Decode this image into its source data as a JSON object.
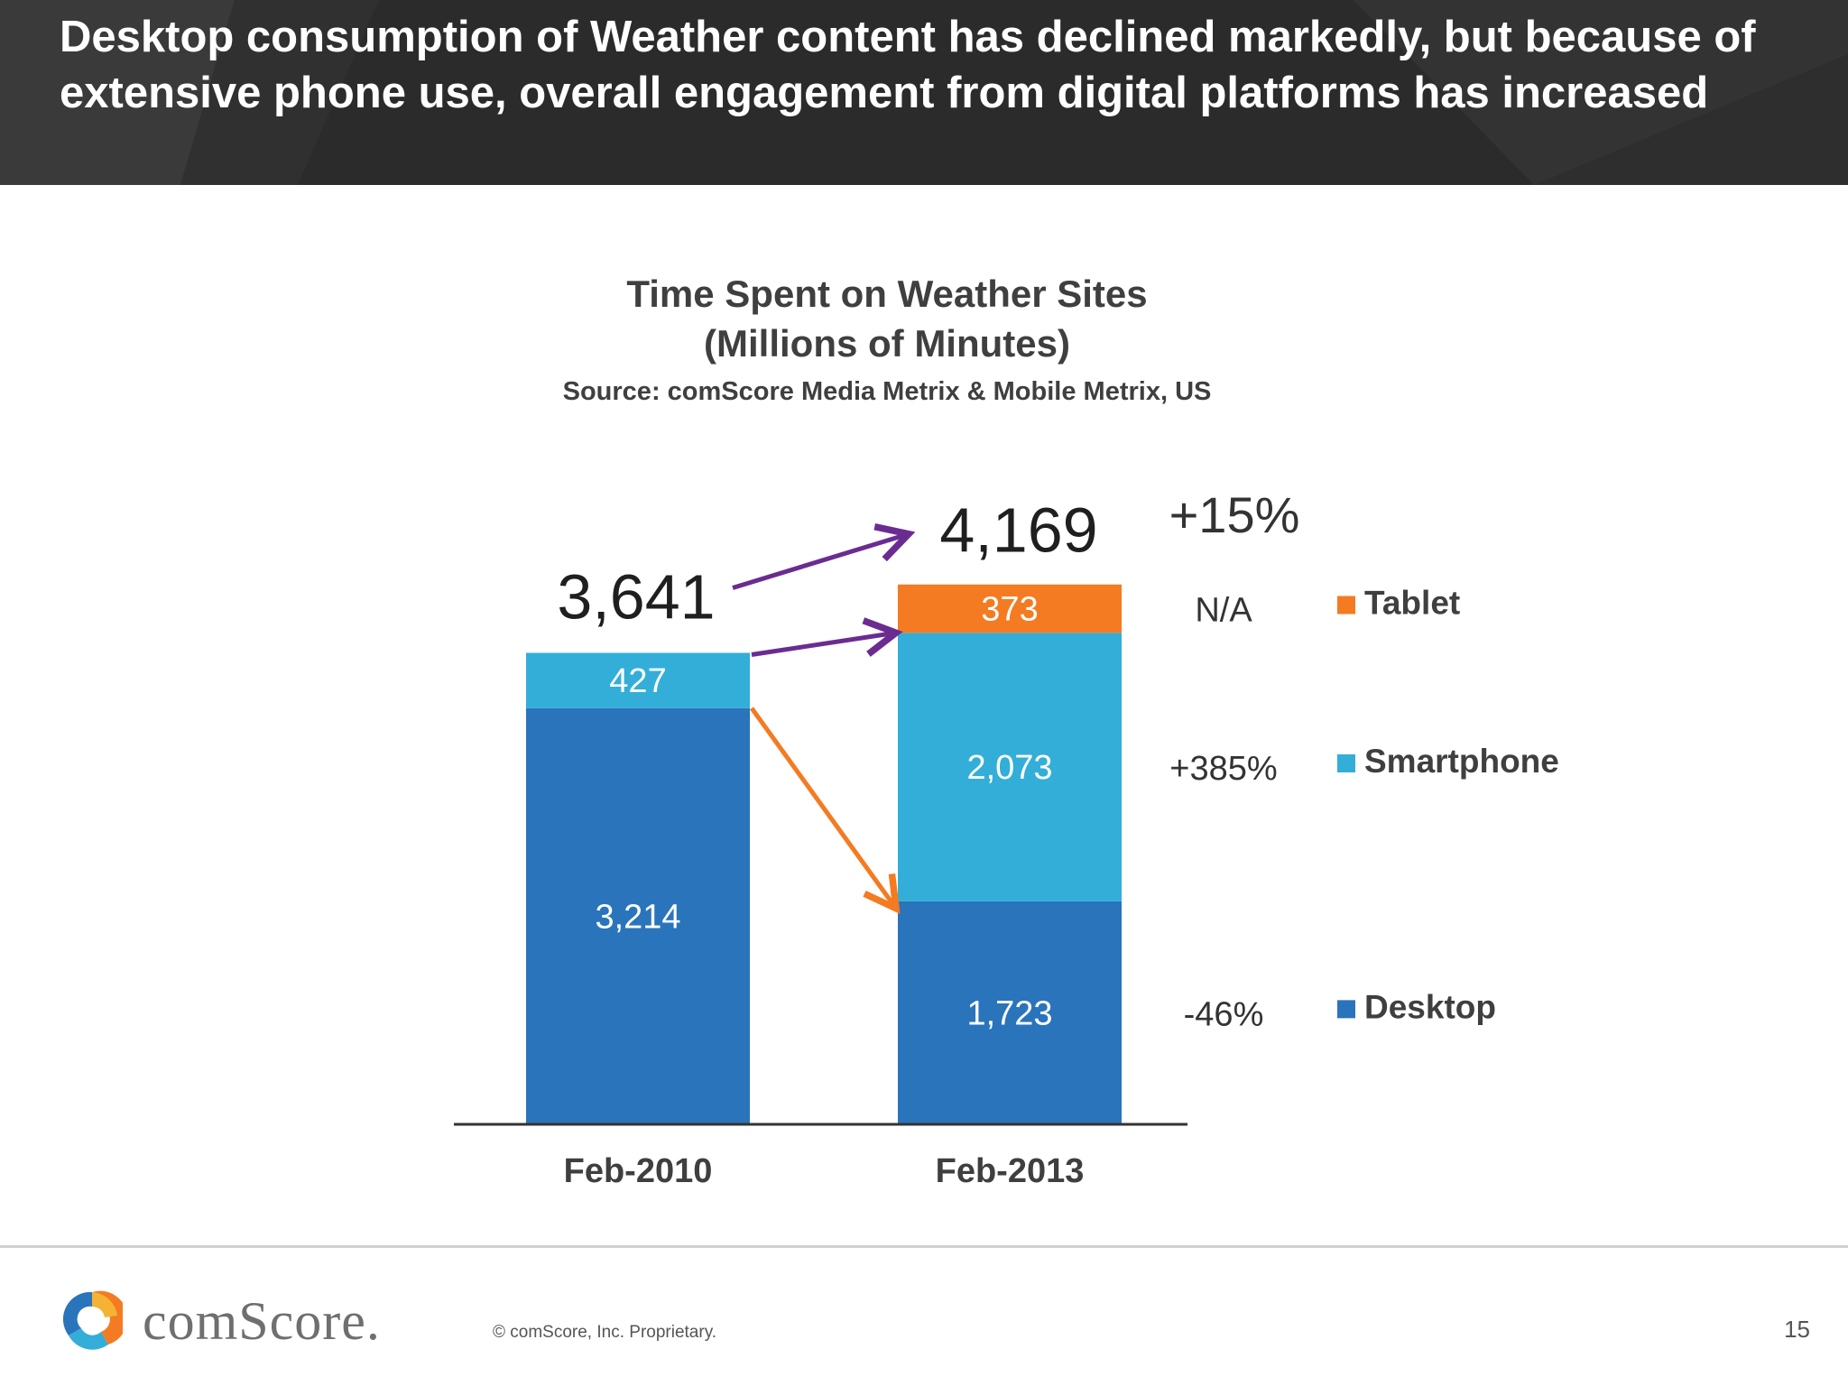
{
  "header": {
    "title": "Desktop consumption of Weather content has declined markedly, but because of extensive phone use, overall engagement from digital platforms has increased"
  },
  "chart_data": {
    "type": "bar",
    "stacked": true,
    "title": "Time Spent on Weather Sites",
    "subtitle": "(Millions of Minutes)",
    "source": "Source: comScore Media Metrix & Mobile Metrix, US",
    "categories": [
      "Feb-2010",
      "Feb-2013"
    ],
    "series": [
      {
        "name": "Desktop",
        "values": [
          3214,
          1723
        ],
        "labels": [
          "3,214",
          "1,723"
        ],
        "color": "#2a74bb",
        "change": "-46%"
      },
      {
        "name": "Smartphone",
        "values": [
          427,
          2073
        ],
        "labels": [
          "427",
          "2,073"
        ],
        "color": "#33aed8",
        "change": "+385%"
      },
      {
        "name": "Tablet",
        "values": [
          0,
          373
        ],
        "labels": [
          "",
          "373"
        ],
        "color": "#f47b22",
        "change": "N/A"
      }
    ],
    "totals": [
      "3,641",
      "4,169"
    ],
    "total_change": "+15%",
    "legend_placement": "right",
    "grid": false,
    "arrow_colors": {
      "total": "#6a2c91",
      "smartphone": "#6a2c91",
      "desktop": "#f47b22"
    }
  },
  "footer": {
    "brand": "comScore.",
    "copyright": "© comScore, Inc.    Proprietary.",
    "page": "15"
  }
}
